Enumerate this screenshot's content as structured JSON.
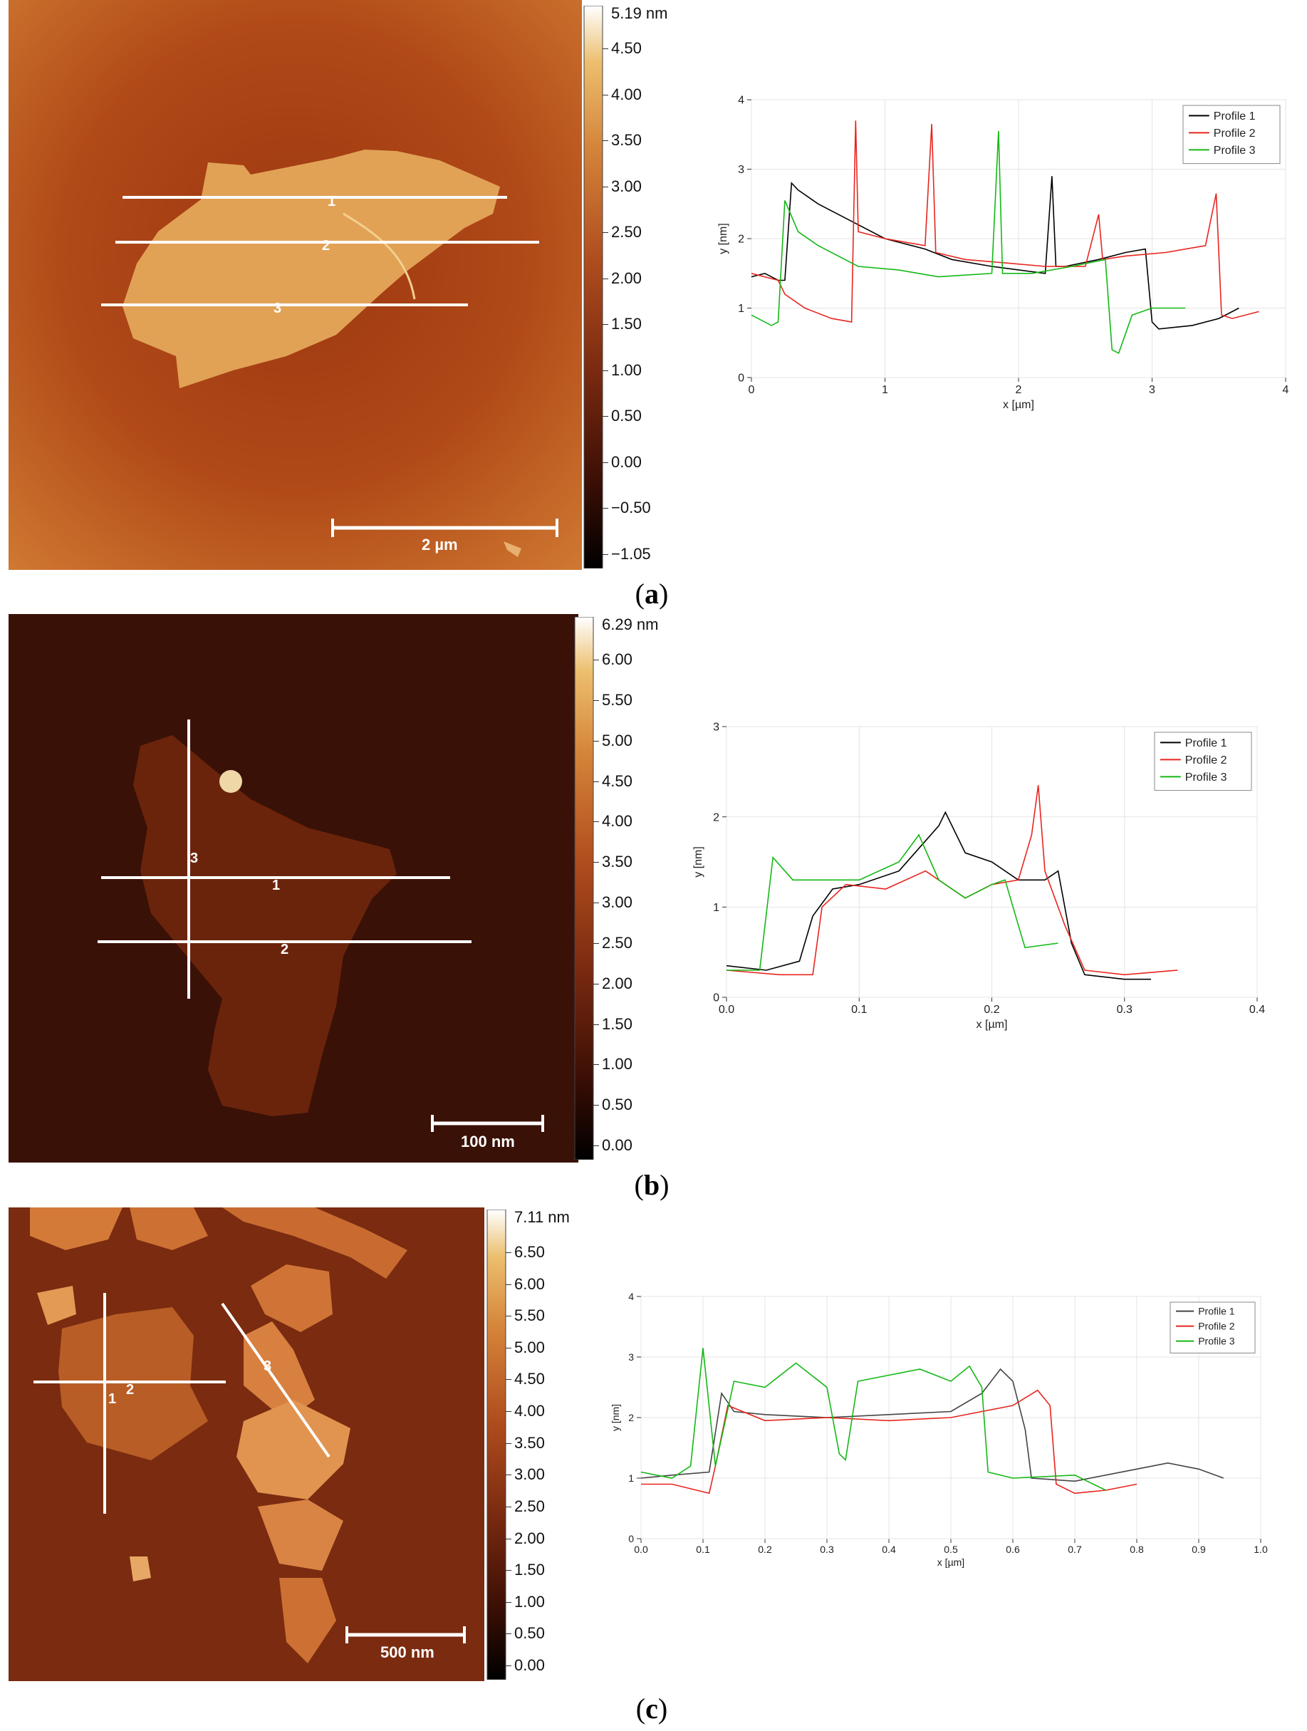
{
  "panels": [
    {
      "id": "a",
      "caption_letter": "a",
      "scale_bar": "2 µm",
      "colorbar": {
        "max_label": "5.19 nm",
        "ticks": [
          "4.50",
          "4.00",
          "3.50",
          "3.00",
          "2.50",
          "2.00",
          "1.50",
          "1.00",
          "0.50",
          "0.00",
          "−0.50",
          "−1.05"
        ],
        "colors": [
          "#000000",
          "#3a0e05",
          "#7a2a10",
          "#b04d1e",
          "#d5853a",
          "#ecbf6e",
          "#ffffff"
        ]
      },
      "profile_line_labels": [
        "1",
        "2",
        "3"
      ]
    },
    {
      "id": "b",
      "caption_letter": "b",
      "scale_bar": "100 nm",
      "colorbar": {
        "max_label": "6.29 nm",
        "ticks": [
          "6.00",
          "5.50",
          "5.00",
          "4.50",
          "4.00",
          "3.50",
          "3.00",
          "2.50",
          "2.00",
          "1.50",
          "1.00",
          "0.50",
          "0.00"
        ],
        "colors": [
          "#000000",
          "#3a0e05",
          "#7a2a10",
          "#b04d1e",
          "#d5853a",
          "#ecbf6e",
          "#ffffff"
        ]
      },
      "profile_line_labels": [
        "1",
        "2",
        "3"
      ]
    },
    {
      "id": "c",
      "caption_letter": "c",
      "scale_bar": "500 nm",
      "colorbar": {
        "max_label": "7.11 nm",
        "ticks": [
          "6.50",
          "6.00",
          "5.50",
          "5.00",
          "4.50",
          "4.00",
          "3.50",
          "3.00",
          "2.50",
          "2.00",
          "1.50",
          "1.00",
          "0.50",
          "0.00"
        ],
        "colors": [
          "#000000",
          "#3a0e05",
          "#7a2a10",
          "#b04d1e",
          "#d5853a",
          "#ecbf6e",
          "#ffffff"
        ]
      },
      "profile_line_labels": [
        "1",
        "2",
        "3"
      ]
    }
  ],
  "chart_data": [
    {
      "type": "line",
      "panel": "a",
      "xlabel": "x [µm]",
      "ylabel": "y [nm]",
      "xlim": [
        0,
        4
      ],
      "ylim": [
        0,
        4
      ],
      "xticks": [
        "0",
        "1",
        "2",
        "3",
        "4"
      ],
      "yticks": [
        "0",
        "1",
        "2",
        "3",
        "4"
      ],
      "legend_position": "top-right",
      "series": [
        {
          "name": "Profile 1",
          "color": "#000000",
          "x": [
            0,
            0.1,
            0.2,
            0.25,
            0.3,
            0.35,
            0.5,
            0.7,
            1.0,
            1.3,
            1.5,
            1.8,
            2.0,
            2.2,
            2.25,
            2.28,
            2.35,
            2.6,
            2.8,
            2.95,
            3.0,
            3.05,
            3.3,
            3.5,
            3.65
          ],
          "y": [
            1.45,
            1.5,
            1.4,
            1.4,
            2.8,
            2.7,
            2.5,
            2.3,
            2.0,
            1.85,
            1.7,
            1.6,
            1.55,
            1.5,
            2.9,
            1.6,
            1.6,
            1.7,
            1.8,
            1.85,
            0.8,
            0.7,
            0.75,
            0.85,
            1.0
          ]
        },
        {
          "name": "Profile 2",
          "color": "#e8251f",
          "x": [
            0,
            0.2,
            0.25,
            0.4,
            0.6,
            0.75,
            0.78,
            0.8,
            1.0,
            1.3,
            1.35,
            1.38,
            1.6,
            1.9,
            2.2,
            2.5,
            2.6,
            2.63,
            2.8,
            3.1,
            3.4,
            3.48,
            3.52,
            3.6,
            3.8
          ],
          "y": [
            1.5,
            1.4,
            1.2,
            1.0,
            0.85,
            0.8,
            3.7,
            2.1,
            2.0,
            1.9,
            3.65,
            1.8,
            1.7,
            1.65,
            1.6,
            1.6,
            2.35,
            1.7,
            1.75,
            1.8,
            1.9,
            2.65,
            0.9,
            0.85,
            0.95
          ]
        },
        {
          "name": "Profile 3",
          "color": "#14b814",
          "x": [
            0,
            0.15,
            0.2,
            0.25,
            0.35,
            0.5,
            0.8,
            1.1,
            1.4,
            1.8,
            1.85,
            1.88,
            2.1,
            2.4,
            2.65,
            2.7,
            2.75,
            2.85,
            3.0,
            3.25
          ],
          "y": [
            0.9,
            0.75,
            0.8,
            2.55,
            2.1,
            1.9,
            1.6,
            1.55,
            1.45,
            1.5,
            3.55,
            1.5,
            1.5,
            1.6,
            1.7,
            0.4,
            0.35,
            0.9,
            1.0,
            1.0
          ]
        }
      ]
    },
    {
      "type": "line",
      "panel": "b",
      "xlabel": "x [µm]",
      "ylabel": "y [nm]",
      "xlim": [
        0,
        0.4
      ],
      "ylim": [
        0,
        3
      ],
      "xticks": [
        "0.0",
        "0.1",
        "0.2",
        "0.3",
        "0.4"
      ],
      "yticks": [
        "0",
        "1",
        "2",
        "3"
      ],
      "legend_position": "top-right",
      "series": [
        {
          "name": "Profile 1",
          "color": "#000000",
          "x": [
            0,
            0.03,
            0.055,
            0.065,
            0.08,
            0.1,
            0.13,
            0.16,
            0.165,
            0.18,
            0.2,
            0.22,
            0.24,
            0.25,
            0.26,
            0.27,
            0.3,
            0.32
          ],
          "y": [
            0.35,
            0.3,
            0.4,
            0.9,
            1.2,
            1.25,
            1.4,
            1.9,
            2.05,
            1.6,
            1.5,
            1.3,
            1.3,
            1.4,
            0.6,
            0.25,
            0.2,
            0.2
          ]
        },
        {
          "name": "Profile 2",
          "color": "#e8251f",
          "x": [
            0,
            0.04,
            0.065,
            0.072,
            0.09,
            0.12,
            0.15,
            0.18,
            0.2,
            0.22,
            0.23,
            0.235,
            0.24,
            0.255,
            0.27,
            0.3,
            0.34
          ],
          "y": [
            0.3,
            0.25,
            0.25,
            1.0,
            1.25,
            1.2,
            1.4,
            1.1,
            1.25,
            1.3,
            1.8,
            2.35,
            1.4,
            0.8,
            0.3,
            0.25,
            0.3
          ]
        },
        {
          "name": "Profile 3",
          "color": "#14b814",
          "x": [
            0,
            0.025,
            0.035,
            0.05,
            0.08,
            0.1,
            0.13,
            0.145,
            0.16,
            0.18,
            0.2,
            0.21,
            0.22,
            0.225,
            0.25
          ],
          "y": [
            0.3,
            0.3,
            1.55,
            1.3,
            1.3,
            1.3,
            1.5,
            1.8,
            1.3,
            1.1,
            1.25,
            1.3,
            0.8,
            0.55,
            0.6
          ]
        }
      ]
    },
    {
      "type": "line",
      "panel": "c",
      "xlabel": "x [µm]",
      "ylabel": "y [nm]",
      "xlim": [
        0,
        1.0
      ],
      "ylim": [
        0,
        4
      ],
      "xticks": [
        "0.0",
        "0.1",
        "0.2",
        "0.3",
        "0.4",
        "0.5",
        "0.6",
        "0.7",
        "0.8",
        "0.9",
        "1.0"
      ],
      "yticks": [
        "0",
        "1",
        "2",
        "3",
        "4"
      ],
      "legend_position": "top-right",
      "series": [
        {
          "name": "Profile 1",
          "color": "#444444",
          "x": [
            0,
            0.05,
            0.11,
            0.13,
            0.15,
            0.2,
            0.3,
            0.4,
            0.5,
            0.55,
            0.58,
            0.6,
            0.62,
            0.63,
            0.7,
            0.8,
            0.85,
            0.9,
            0.94
          ],
          "y": [
            1.0,
            1.05,
            1.1,
            2.4,
            2.1,
            2.05,
            2.0,
            2.05,
            2.1,
            2.4,
            2.8,
            2.6,
            1.8,
            1.0,
            0.95,
            1.15,
            1.25,
            1.15,
            1.0
          ]
        },
        {
          "name": "Profile 2",
          "color": "#e8251f",
          "x": [
            0,
            0.05,
            0.11,
            0.12,
            0.14,
            0.2,
            0.3,
            0.4,
            0.5,
            0.6,
            0.64,
            0.66,
            0.67,
            0.7,
            0.75,
            0.8
          ],
          "y": [
            0.9,
            0.9,
            0.75,
            1.2,
            2.2,
            1.95,
            2.0,
            1.95,
            2.0,
            2.2,
            2.45,
            2.2,
            0.9,
            0.75,
            0.8,
            0.9
          ]
        },
        {
          "name": "Profile 3",
          "color": "#14b814",
          "x": [
            0,
            0.05,
            0.08,
            0.1,
            0.12,
            0.15,
            0.2,
            0.25,
            0.3,
            0.32,
            0.33,
            0.35,
            0.4,
            0.45,
            0.5,
            0.53,
            0.55,
            0.56,
            0.6,
            0.7,
            0.75
          ],
          "y": [
            1.1,
            1.0,
            1.2,
            3.15,
            1.2,
            2.6,
            2.5,
            2.9,
            2.5,
            1.4,
            1.3,
            2.6,
            2.7,
            2.8,
            2.6,
            2.85,
            2.5,
            1.1,
            1.0,
            1.05,
            0.8
          ]
        }
      ]
    }
  ]
}
